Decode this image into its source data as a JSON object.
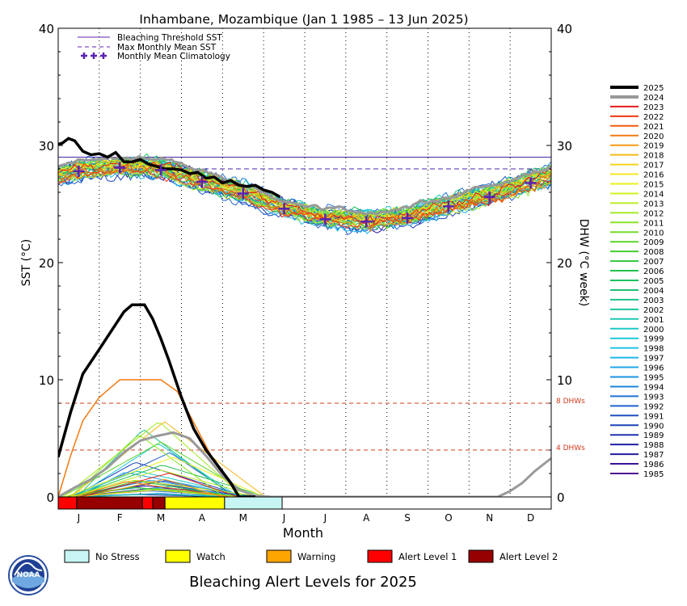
{
  "chart_data": {
    "type": "line",
    "title": "Inhambane, Mozambique      (Jan 1 1985 – 13 Jun 2025)",
    "xlabel": "Month",
    "ylabel_left": "SST (°C)",
    "ylabel_right": "DHW (°C week)",
    "months": [
      "J",
      "F",
      "M",
      "A",
      "M",
      "J",
      "J",
      "A",
      "S",
      "O",
      "N",
      "D"
    ],
    "ylim": [
      0,
      40
    ],
    "y_ticks": [
      "0",
      "10",
      "20",
      "30",
      "40"
    ],
    "grid": "vertical dotted at month boundaries",
    "legend_top": {
      "threshold": "Bleaching Threshold SST",
      "mmm": "Max Monthly Mean SST",
      "climatology": "Monthly Mean Climatology"
    },
    "bleaching_threshold": 29.0,
    "max_monthly_mean": 28.0,
    "dhw_reference_lines": [
      {
        "value": 8,
        "label": "8 DHWs"
      },
      {
        "value": 4,
        "label": "4 DHWs"
      }
    ],
    "climatology_x": [
      0.5,
      1.5,
      2.5,
      3.5,
      4.5,
      5.5,
      6.5,
      7.5,
      8.5,
      9.5,
      10.5,
      11.5
    ],
    "climatology_sst": [
      27.8,
      28.1,
      27.9,
      26.9,
      25.9,
      24.6,
      23.7,
      23.5,
      23.8,
      24.8,
      25.6,
      26.8
    ],
    "year_labels": [
      "2025",
      "2024",
      "2023",
      "2022",
      "2021",
      "2020",
      "2019",
      "2018",
      "2017",
      "2016",
      "2015",
      "2014",
      "2013",
      "2012",
      "2011",
      "2010",
      "2009",
      "2008",
      "2007",
      "2006",
      "2005",
      "2004",
      "2003",
      "2002",
      "2001",
      "2000",
      "1999",
      "1998",
      "1997",
      "1996",
      "1995",
      "1994",
      "1993",
      "1992",
      "1991",
      "1990",
      "1989",
      "1988",
      "1987",
      "1986",
      "1985"
    ],
    "year_colors": [
      "#000000",
      "#999999",
      "#e41a1c",
      "#f03a12",
      "#f25b10",
      "#f27a12",
      "#f39a16",
      "#f3b818",
      "#f5d21a",
      "#f4e81c",
      "#e8f01c",
      "#d2f01e",
      "#bcee22",
      "#a4ea24",
      "#8ce426",
      "#74dc28",
      "#5cd42c",
      "#46cc30",
      "#30c63a",
      "#22c24c",
      "#1ec060",
      "#1ec074",
      "#1ec288",
      "#1ec49c",
      "#1ec6b0",
      "#1ec8c4",
      "#1ec8d8",
      "#1ec4e6",
      "#1eb8ea",
      "#1ea8ea",
      "#1e96e4",
      "#1e84dc",
      "#1e72d4",
      "#1e60ca",
      "#1e50c0",
      "#1e40b8",
      "#1e30b0",
      "#1e20a8",
      "#2418a0",
      "#3a1498",
      "#501090"
    ],
    "series_2025_sst": {
      "x": [
        0,
        0.1,
        0.25,
        0.4,
        0.6,
        0.8,
        1.0,
        1.2,
        1.4,
        1.6,
        1.8,
        2.0,
        2.2,
        2.4,
        2.6,
        2.8,
        3.0,
        3.2,
        3.4,
        3.6,
        3.8,
        4.0,
        4.2,
        4.4,
        4.6,
        4.8,
        5.0,
        5.2,
        5.4
      ],
      "y": [
        30.1,
        30.2,
        30.6,
        30.4,
        29.5,
        29.2,
        29.3,
        29.0,
        29.4,
        28.6,
        28.6,
        28.8,
        28.4,
        28.2,
        28.0,
        28.0,
        27.9,
        27.6,
        27.7,
        27.2,
        27.3,
        26.8,
        27.0,
        26.6,
        26.5,
        26.6,
        26.2,
        26.0,
        25.6
      ]
    },
    "series_2025_dhw": {
      "x": [
        0,
        0.3,
        0.6,
        1.0,
        1.3,
        1.6,
        1.8,
        1.95,
        2.1,
        2.3,
        2.5,
        2.7,
        3.0,
        3.3,
        3.6,
        3.9,
        4.2,
        4.4,
        4.6,
        4.8
      ],
      "y": [
        3.4,
        7.2,
        10.5,
        12.6,
        14.2,
        15.8,
        16.4,
        16.4,
        16.4,
        15.2,
        13.5,
        11.6,
        8.5,
        5.8,
        4.0,
        2.6,
        1.2,
        0,
        0,
        0
      ]
    },
    "series_2024_dhw": {
      "x": [
        0,
        0.4,
        0.8,
        1.2,
        1.6,
        2.0,
        2.4,
        2.8,
        3.2,
        3.6,
        4.0,
        4.4,
        4.8,
        5.2,
        10.3,
        10.7,
        11.0,
        11.3,
        11.6,
        12.0
      ],
      "y": [
        0,
        0.8,
        1.5,
        2.5,
        3.8,
        4.8,
        5.2,
        5.5,
        5.0,
        3.5,
        1.8,
        0.6,
        0.1,
        0,
        0,
        0,
        0.5,
        1.2,
        2.2,
        3.3
      ]
    },
    "series_2020_dhw": {
      "x": [
        0,
        0.3,
        0.6,
        1.0,
        1.5,
        2.0,
        2.5,
        2.9,
        3.2,
        3.5,
        3.8,
        4.1,
        4.4
      ],
      "y": [
        0,
        3.5,
        6.5,
        8.5,
        10.0,
        10.0,
        10.0,
        9.0,
        7.0,
        5.0,
        3.0,
        1.5,
        0
      ]
    },
    "alert_levels": {
      "title": "Bleaching Alert Levels for 2025",
      "legend": [
        "No Stress",
        "Watch",
        "Warning",
        "Alert Level 1",
        "Alert Level 2"
      ],
      "colors": [
        "#c6f5f3",
        "#ffff00",
        "#ffa500",
        "#ff0000",
        "#960000"
      ],
      "segments": [
        {
          "start": 0.0,
          "end": 0.45,
          "level": 3
        },
        {
          "start": 0.45,
          "end": 2.05,
          "level": 4
        },
        {
          "start": 2.05,
          "end": 2.3,
          "level": 3
        },
        {
          "start": 2.3,
          "end": 2.6,
          "level": 4
        },
        {
          "start": 2.6,
          "end": 4.05,
          "level": 1
        },
        {
          "start": 4.05,
          "end": 5.45,
          "level": 0
        }
      ]
    }
  },
  "branding": {
    "logo_text": "NOAA"
  }
}
